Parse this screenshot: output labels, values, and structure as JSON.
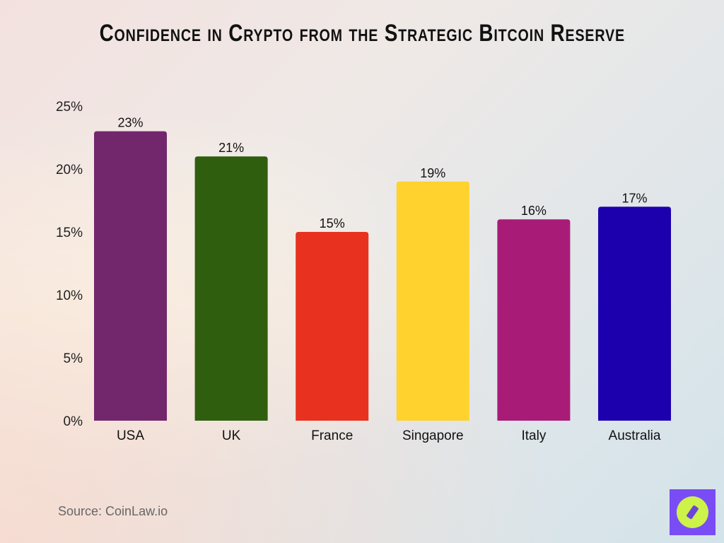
{
  "chart_data": {
    "type": "bar",
    "title": "Confidence in Crypto from the Strategic Bitcoin Reserve",
    "categories": [
      "USA",
      "UK",
      "France",
      "Singapore",
      "Italy",
      "Australia"
    ],
    "values": [
      23,
      21,
      15,
      19,
      16,
      17
    ],
    "data_labels": [
      "23%",
      "21%",
      "15%",
      "19%",
      "16%",
      "17%"
    ],
    "colors": [
      "#72276d",
      "#2f5e0e",
      "#e8311f",
      "#ffd22e",
      "#a81c78",
      "#1c00ae"
    ],
    "yticks": [
      0,
      5,
      10,
      15,
      20,
      25
    ],
    "ytick_labels": [
      "0%",
      "5%",
      "10%",
      "15%",
      "20%",
      "25%"
    ],
    "ylim": [
      0,
      25
    ],
    "xlabel": "",
    "ylabel": "",
    "grid": false,
    "legend": "none"
  },
  "source": "Source: CoinLaw.io",
  "logo": {
    "icon": "compass-icon",
    "background": "#7a4cf5",
    "accent": "#cdf24a"
  }
}
